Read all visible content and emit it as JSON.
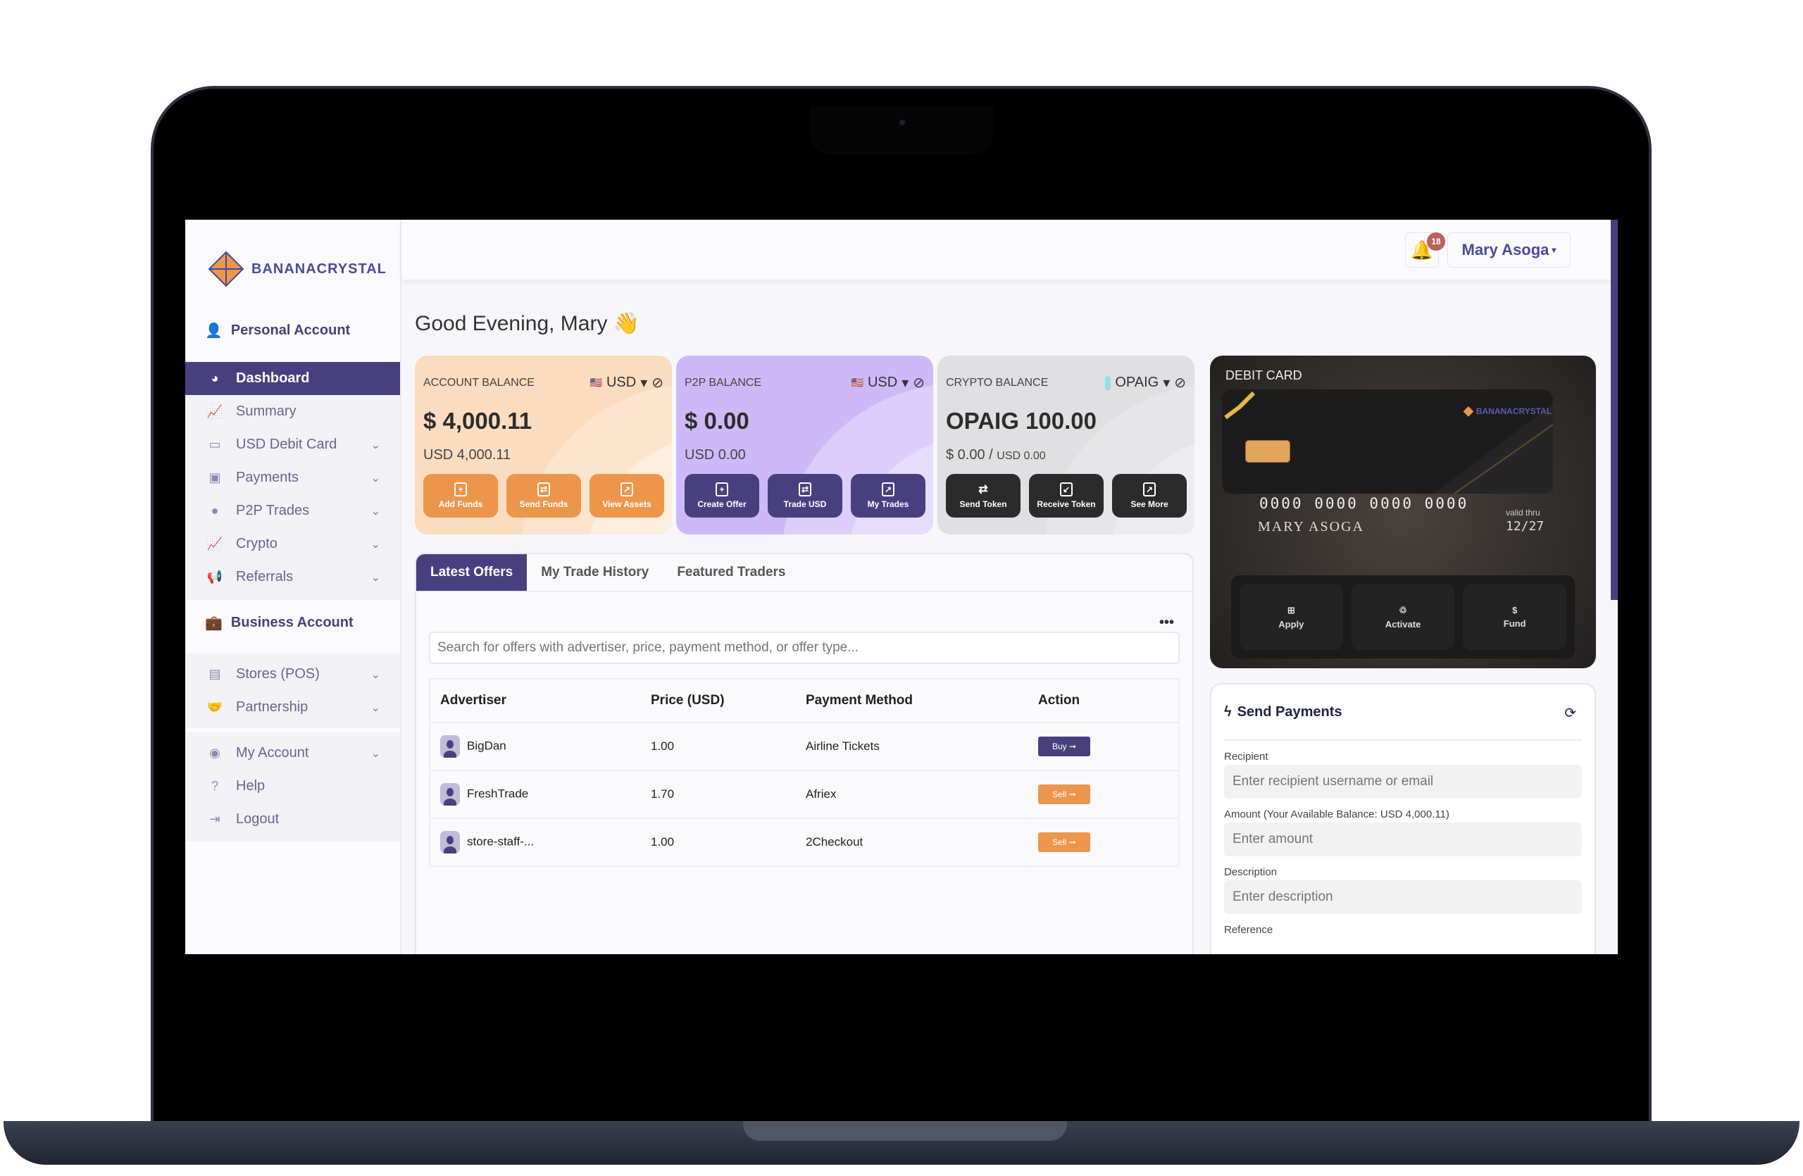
{
  "brand": {
    "name": "BANANACRYSTAL",
    "accent": "#48407e",
    "orange": "#ec964b"
  },
  "sidebar": {
    "personal_label": "Personal Account",
    "items": [
      {
        "label": "Dashboard",
        "icon": "pie-chart-icon",
        "active": true
      },
      {
        "label": "Summary",
        "icon": "line-chart-icon"
      },
      {
        "label": "USD Debit Card",
        "icon": "credit-card-icon",
        "expand": true
      },
      {
        "label": "Payments",
        "icon": "money-icon",
        "expand": true
      },
      {
        "label": "P2P Trades",
        "icon": "globe-icon",
        "expand": true
      },
      {
        "label": "Crypto",
        "icon": "line-chart-icon",
        "expand": true
      },
      {
        "label": "Referrals",
        "icon": "megaphone-icon",
        "expand": true
      }
    ],
    "business_label": "Business Account",
    "business_items": [
      {
        "label": "Stores (POS)",
        "icon": "store-icon"
      },
      {
        "label": "Partnership",
        "icon": "handshake-icon"
      }
    ],
    "account_items": [
      {
        "label": "My Account",
        "icon": "user-circle-icon"
      },
      {
        "label": "Help",
        "icon": "question-icon"
      },
      {
        "label": "Logout",
        "icon": "logout-icon"
      }
    ]
  },
  "header": {
    "notifications": "18",
    "user": "Mary Asoga"
  },
  "greeting": "Good Evening, Mary 👋",
  "cards": [
    {
      "title": "ACCOUNT BALANCE",
      "currency": "USD",
      "amount": "$ 4,000.11",
      "sub": "USD 4,000.11",
      "buttons": [
        "Add Funds",
        "Send Funds",
        "View Assets"
      ]
    },
    {
      "title": "P2P BALANCE",
      "currency": "USD",
      "amount": "$ 0.00",
      "sub": "USD 0.00",
      "buttons": [
        "Create Offer",
        "Trade USD",
        "My Trades"
      ]
    },
    {
      "title": "CRYPTO BALANCE",
      "currency": "OPAIG",
      "amount": "OPAIG 100.00",
      "sub": "$ 0.00 / ",
      "sub_small": "USD 0.00",
      "buttons": [
        "Send Token",
        "Receive Token",
        "See More"
      ]
    }
  ],
  "debit_card": {
    "title": "DEBIT CARD",
    "brand": "BANANACRYSTAL",
    "number": "0000  0000  0000  0000",
    "name": "MARY  ASOGA",
    "valid_label": "valid thru",
    "expiry": "12/27",
    "buttons": [
      "Apply",
      "Activate",
      "Fund"
    ]
  },
  "offers": {
    "tabs": [
      "Latest Offers",
      "My Trade History",
      "Featured Traders"
    ],
    "search_placeholder": "Search for offers with advertiser, price, payment method, or offer type...",
    "more": "•••",
    "columns": [
      "Advertiser",
      "Price (USD)",
      "Payment Method",
      "Action"
    ],
    "rows": [
      {
        "advertiser": "BigDan",
        "price": "1.00",
        "method": "Airline Tickets",
        "action": "Buy ➞"
      },
      {
        "advertiser": "FreshTrade",
        "price": "1.70",
        "method": "Afriex",
        "action": "Sell ➞"
      },
      {
        "advertiser": "store-staff-...",
        "price": "1.00",
        "method": "2Checkout",
        "action": "Sell ➞"
      }
    ]
  },
  "send_payments": {
    "title": "Send Payments",
    "recipient_label": "Recipient",
    "recipient_placeholder": "Enter recipient username or email",
    "amount_label": "Amount (Your Available Balance: USD 4,000.11)",
    "amount_placeholder": "Enter amount",
    "description_label": "Description",
    "description_placeholder": "Enter description",
    "reference_label": "Reference"
  }
}
